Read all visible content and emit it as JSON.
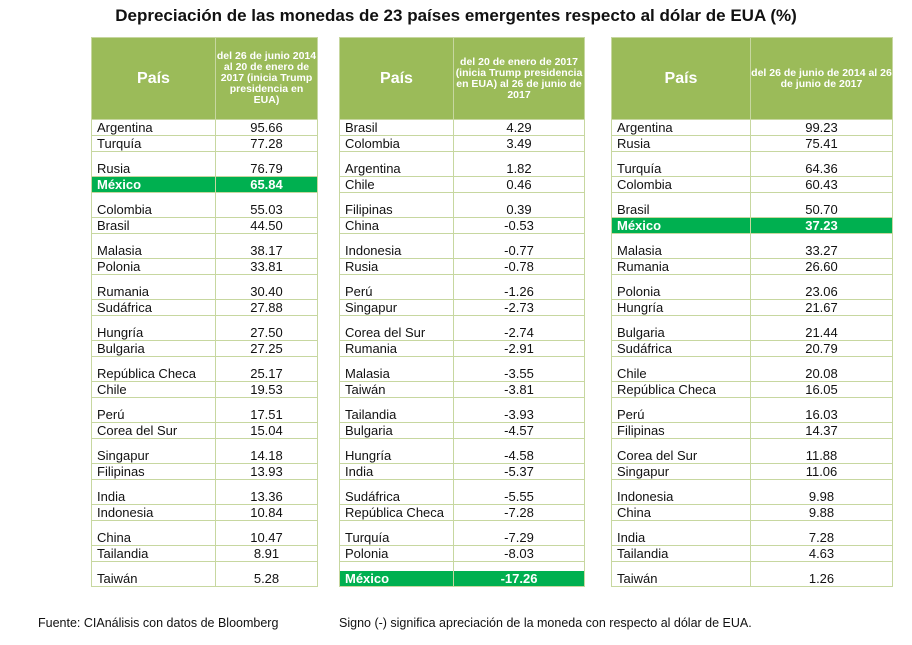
{
  "title": "Depreciación de las monedas de 23 países emergentes respecto al dólar de EUA (%)",
  "tables": [
    {
      "header": {
        "country": "País",
        "value": "del 26 de junio 2014 al 20 de enero de 2017 (inicia Trump presidencia en EUA)"
      },
      "rows": [
        {
          "country": "Argentina",
          "value": "95.66"
        },
        {
          "country": "Turquía",
          "value": "77.28"
        },
        {
          "country": "Rusia",
          "value": "76.79"
        },
        {
          "country": "México",
          "value": "65.84",
          "highlight": true
        },
        {
          "country": "Colombia",
          "value": "55.03"
        },
        {
          "country": "Brasil",
          "value": "44.50"
        },
        {
          "country": "Malasia",
          "value": "38.17"
        },
        {
          "country": "Polonia",
          "value": "33.81"
        },
        {
          "country": "Rumania",
          "value": "30.40"
        },
        {
          "country": "Sudáfrica",
          "value": "27.88"
        },
        {
          "country": "Hungría",
          "value": "27.50"
        },
        {
          "country": "Bulgaria",
          "value": "27.25"
        },
        {
          "country": "República Checa",
          "value": "25.17"
        },
        {
          "country": "Chile",
          "value": "19.53"
        },
        {
          "country": "Perú",
          "value": "17.51"
        },
        {
          "country": "Corea del Sur",
          "value": "15.04"
        },
        {
          "country": "Singapur",
          "value": "14.18"
        },
        {
          "country": "Filipinas",
          "value": "13.93"
        },
        {
          "country": "India",
          "value": "13.36"
        },
        {
          "country": "Indonesia",
          "value": "10.84"
        },
        {
          "country": "China",
          "value": "10.47"
        },
        {
          "country": "Tailandia",
          "value": "8.91"
        },
        {
          "country": "Taiwán",
          "value": "5.28"
        }
      ]
    },
    {
      "header": {
        "country": "País",
        "value": "del 20 de enero de 2017 (inicia Trump presidencia en EUA) al 26 de junio de 2017"
      },
      "rows": [
        {
          "country": "Brasil",
          "value": "4.29"
        },
        {
          "country": "Colombia",
          "value": "3.49"
        },
        {
          "country": "Argentina",
          "value": "1.82"
        },
        {
          "country": "Chile",
          "value": "0.46"
        },
        {
          "country": "Filipinas",
          "value": "0.39"
        },
        {
          "country": "China",
          "value": "-0.53"
        },
        {
          "country": "Indonesia",
          "value": "-0.77"
        },
        {
          "country": "Rusia",
          "value": "-0.78"
        },
        {
          "country": "Perú",
          "value": "-1.26"
        },
        {
          "country": "Singapur",
          "value": "-2.73"
        },
        {
          "country": "Corea del Sur",
          "value": "-2.74"
        },
        {
          "country": "Rumania",
          "value": "-2.91"
        },
        {
          "country": "Malasia",
          "value": "-3.55"
        },
        {
          "country": "Taiwán",
          "value": "-3.81"
        },
        {
          "country": "Tailandia",
          "value": "-3.93"
        },
        {
          "country": "Bulgaria",
          "value": "-4.57"
        },
        {
          "country": "Hungría",
          "value": "-4.58"
        },
        {
          "country": "India",
          "value": "-5.37"
        },
        {
          "country": "Sudáfrica",
          "value": "-5.55"
        },
        {
          "country": "República Checa",
          "value": "-7.28"
        },
        {
          "country": "Turquía",
          "value": "-7.29"
        },
        {
          "country": "Polonia",
          "value": "-8.03"
        },
        {
          "country": "México",
          "value": "-17.26",
          "highlight": true
        }
      ]
    },
    {
      "header": {
        "country": "País",
        "value": "del 26 de junio de 2014 al 26 de junio de 2017"
      },
      "rows": [
        {
          "country": "Argentina",
          "value": "99.23"
        },
        {
          "country": "Rusia",
          "value": "75.41"
        },
        {
          "country": "Turquía",
          "value": "64.36"
        },
        {
          "country": "Colombia",
          "value": "60.43"
        },
        {
          "country": "Brasil",
          "value": "50.70"
        },
        {
          "country": "México",
          "value": "37.23",
          "highlight": true
        },
        {
          "country": "Malasia",
          "value": "33.27"
        },
        {
          "country": "Rumania",
          "value": "26.60"
        },
        {
          "country": "Polonia",
          "value": "23.06"
        },
        {
          "country": "Hungría",
          "value": "21.67"
        },
        {
          "country": "Bulgaria",
          "value": "21.44"
        },
        {
          "country": "Sudáfrica",
          "value": "20.79"
        },
        {
          "country": "Chile",
          "value": "20.08"
        },
        {
          "country": "República Checa",
          "value": "16.05"
        },
        {
          "country": "Perú",
          "value": "16.03"
        },
        {
          "country": "Filipinas",
          "value": "14.37"
        },
        {
          "country": "Corea del Sur",
          "value": "11.88"
        },
        {
          "country": "Singapur",
          "value": "11.06"
        },
        {
          "country": "Indonesia",
          "value": "9.98"
        },
        {
          "country": "China",
          "value": "9.88"
        },
        {
          "country": "India",
          "value": "7.28"
        },
        {
          "country": "Tailandia",
          "value": "4.63"
        },
        {
          "country": "Taiwán",
          "value": "1.26"
        }
      ]
    }
  ],
  "footer": {
    "source": "Fuente: CIAnálisis con datos de Bloomberg",
    "note": "Signo (-) significa apreciación de la moneda con respecto al dólar de EUA."
  },
  "colors": {
    "header_green": "#9bbb59",
    "highlight_green": "#00b050",
    "grid_line": "#c7d7a0"
  }
}
